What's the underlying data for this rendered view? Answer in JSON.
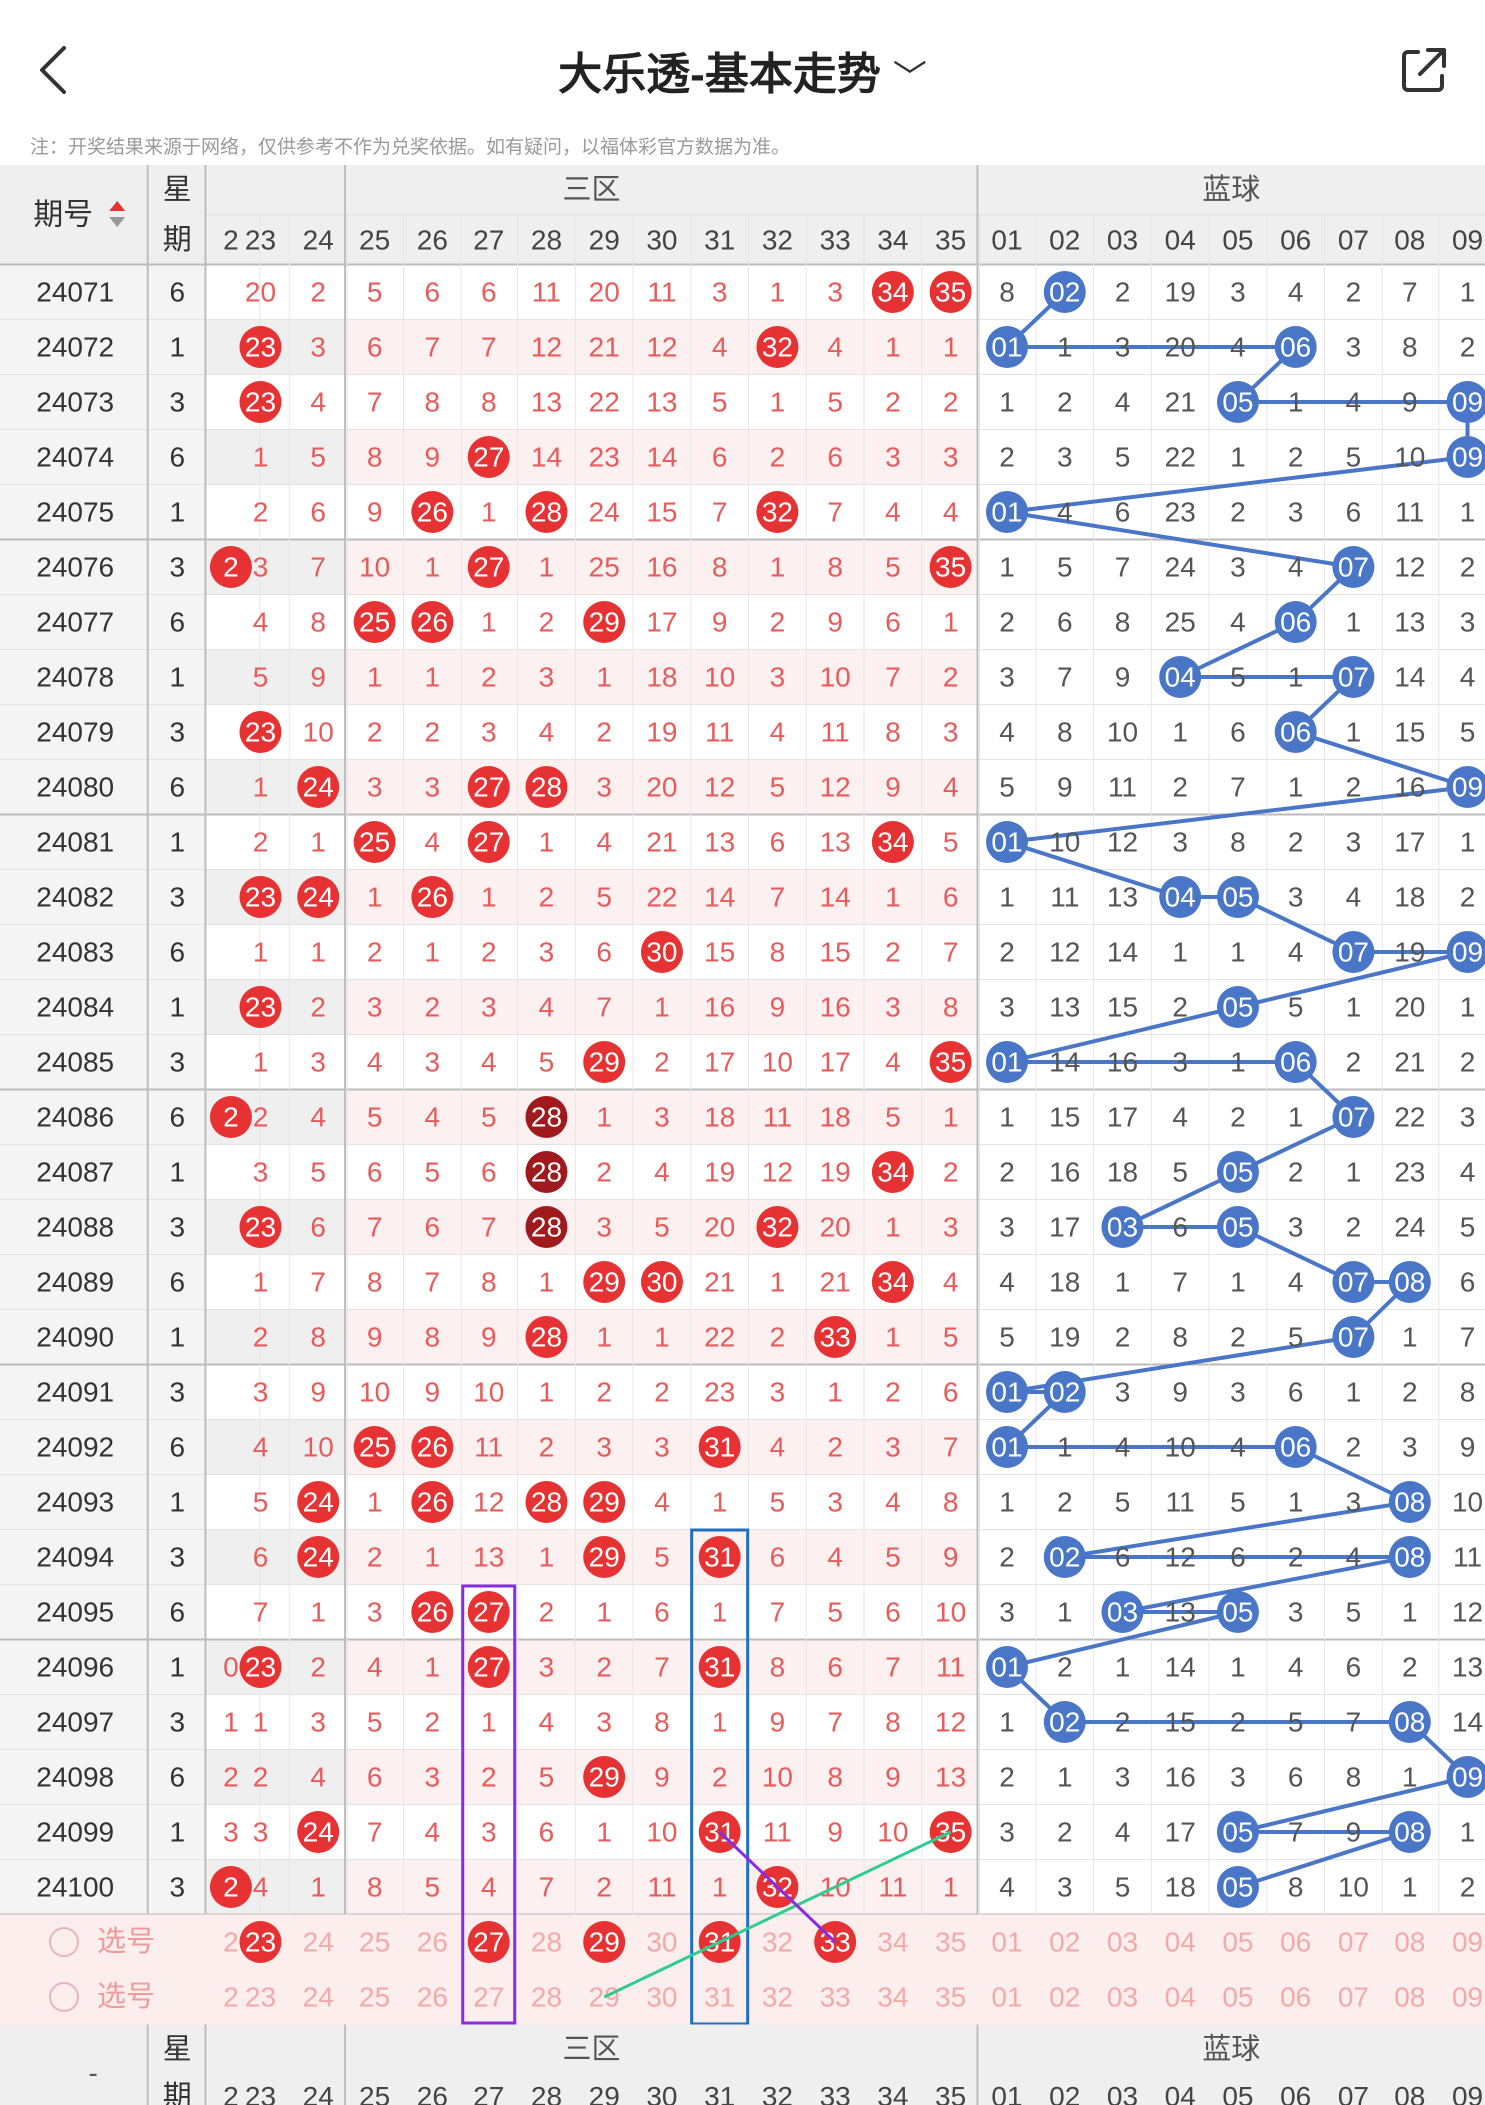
{
  "header": {
    "title": "大乐透-基本走势",
    "back_icon": "chevron-left-icon",
    "dropdown_icon": "chevron-down-icon",
    "share_icon": "share-icon"
  },
  "note": "注：开奖结果来源于网络，仅供参考不作为兑奖依据。如有疑问，以福体彩官方数据为准。",
  "table": {
    "col_issue": "期号",
    "col_week_1": "星",
    "col_week_2": "期",
    "zone_label": "三区",
    "blue_label": "蓝球",
    "front_cols": [
      "2",
      "23",
      "24",
      "25",
      "26",
      "27",
      "28",
      "29",
      "30",
      "31",
      "32",
      "33",
      "34",
      "35"
    ],
    "blue_cols": [
      "01",
      "02",
      "03",
      "04",
      "05",
      "06",
      "07",
      "08",
      "09"
    ],
    "select_label": "选号",
    "footer_issue": "-",
    "rows": [
      {
        "issue": "24071",
        "week": "6",
        "front": [
          "",
          "20",
          "2",
          "5",
          "6",
          "6",
          "11",
          "20",
          "11",
          "3",
          "1",
          "3",
          "34",
          "35"
        ],
        "blue": [
          "8",
          "02",
          "2",
          "19",
          "3",
          "4",
          "2",
          "7",
          "1"
        ],
        "hitsF": [
          12,
          13
        ],
        "hitsB": [
          1
        ]
      },
      {
        "issue": "24072",
        "week": "1",
        "front": [
          "",
          "23",
          "3",
          "6",
          "7",
          "7",
          "12",
          "21",
          "12",
          "4",
          "32",
          "4",
          "1",
          "1"
        ],
        "blue": [
          "01",
          "1",
          "3",
          "20",
          "4",
          "06",
          "3",
          "8",
          "2"
        ],
        "hitsF": [
          1,
          10
        ],
        "hitsB": [
          0,
          5
        ]
      },
      {
        "issue": "24073",
        "week": "3",
        "front": [
          "",
          "23",
          "4",
          "7",
          "8",
          "8",
          "13",
          "22",
          "13",
          "5",
          "1",
          "5",
          "2",
          "2"
        ],
        "blue": [
          "1",
          "2",
          "4",
          "21",
          "05",
          "1",
          "4",
          "9",
          "09"
        ],
        "hitsF": [
          1
        ],
        "hitsB": [
          4,
          8
        ]
      },
      {
        "issue": "24074",
        "week": "6",
        "front": [
          "",
          "1",
          "5",
          "8",
          "9",
          "27",
          "14",
          "23",
          "14",
          "6",
          "2",
          "6",
          "3",
          "3"
        ],
        "blue": [
          "2",
          "3",
          "5",
          "22",
          "1",
          "2",
          "5",
          "10",
          "09"
        ],
        "hitsF": [
          5
        ],
        "hitsB": [
          8
        ]
      },
      {
        "issue": "24075",
        "week": "1",
        "front": [
          "",
          "2",
          "6",
          "9",
          "26",
          "1",
          "28",
          "24",
          "15",
          "7",
          "32",
          "7",
          "4",
          "4"
        ],
        "blue": [
          "01",
          "4",
          "6",
          "23",
          "2",
          "3",
          "6",
          "11",
          "1"
        ],
        "hitsF": [
          4,
          6,
          10
        ],
        "hitsB": [
          0
        ]
      },
      {
        "issue": "24076",
        "week": "3",
        "front": [
          "2",
          "3",
          "7",
          "10",
          "1",
          "27",
          "1",
          "25",
          "16",
          "8",
          "1",
          "8",
          "5",
          "35"
        ],
        "blue": [
          "1",
          "5",
          "7",
          "24",
          "3",
          "4",
          "07",
          "12",
          "2"
        ],
        "hitsF": [
          0,
          5,
          13
        ],
        "hitsB": [
          6
        ]
      },
      {
        "issue": "24077",
        "week": "6",
        "front": [
          "",
          "4",
          "8",
          "25",
          "26",
          "1",
          "2",
          "29",
          "17",
          "9",
          "2",
          "9",
          "6",
          "1"
        ],
        "blue": [
          "2",
          "6",
          "8",
          "25",
          "4",
          "06",
          "1",
          "13",
          "3"
        ],
        "hitsF": [
          3,
          4,
          7
        ],
        "hitsB": [
          5
        ]
      },
      {
        "issue": "24078",
        "week": "1",
        "front": [
          "",
          "5",
          "9",
          "1",
          "1",
          "2",
          "3",
          "1",
          "18",
          "10",
          "3",
          "10",
          "7",
          "2"
        ],
        "blue": [
          "3",
          "7",
          "9",
          "04",
          "5",
          "1",
          "07",
          "14",
          "4"
        ],
        "hitsF": [],
        "hitsB": [
          3,
          6
        ]
      },
      {
        "issue": "24079",
        "week": "3",
        "front": [
          "",
          "23",
          "10",
          "2",
          "2",
          "3",
          "4",
          "2",
          "19",
          "11",
          "4",
          "11",
          "8",
          "3"
        ],
        "blue": [
          "4",
          "8",
          "10",
          "1",
          "6",
          "06",
          "1",
          "15",
          "5"
        ],
        "hitsF": [
          1
        ],
        "hitsB": [
          5
        ]
      },
      {
        "issue": "24080",
        "week": "6",
        "front": [
          "",
          "1",
          "24",
          "3",
          "3",
          "27",
          "28",
          "3",
          "20",
          "12",
          "5",
          "12",
          "9",
          "4"
        ],
        "blue": [
          "5",
          "9",
          "11",
          "2",
          "7",
          "1",
          "2",
          "16",
          "09"
        ],
        "hitsF": [
          2,
          5,
          6
        ],
        "hitsB": [
          8
        ]
      },
      {
        "issue": "24081",
        "week": "1",
        "front": [
          "",
          "2",
          "1",
          "25",
          "4",
          "27",
          "1",
          "4",
          "21",
          "13",
          "6",
          "13",
          "34",
          "5"
        ],
        "blue": [
          "01",
          "10",
          "12",
          "3",
          "8",
          "2",
          "3",
          "17",
          "1"
        ],
        "hitsF": [
          3,
          5,
          12
        ],
        "hitsB": [
          0
        ]
      },
      {
        "issue": "24082",
        "week": "3",
        "front": [
          "",
          "23",
          "24",
          "1",
          "26",
          "1",
          "2",
          "5",
          "22",
          "14",
          "7",
          "14",
          "1",
          "6"
        ],
        "blue": [
          "1",
          "11",
          "13",
          "04",
          "05",
          "3",
          "4",
          "18",
          "2"
        ],
        "hitsF": [
          1,
          2,
          4
        ],
        "hitsB": [
          3,
          4
        ]
      },
      {
        "issue": "24083",
        "week": "6",
        "front": [
          "",
          "1",
          "1",
          "2",
          "1",
          "2",
          "3",
          "6",
          "30",
          "15",
          "8",
          "15",
          "2",
          "7"
        ],
        "blue": [
          "2",
          "12",
          "14",
          "1",
          "1",
          "4",
          "07",
          "19",
          "09"
        ],
        "hitsF": [
          8
        ],
        "hitsB": [
          6,
          8
        ]
      },
      {
        "issue": "24084",
        "week": "1",
        "front": [
          "",
          "23",
          "2",
          "3",
          "2",
          "3",
          "4",
          "7",
          "1",
          "16",
          "9",
          "16",
          "3",
          "8"
        ],
        "blue": [
          "3",
          "13",
          "15",
          "2",
          "05",
          "5",
          "1",
          "20",
          "1"
        ],
        "hitsF": [
          1
        ],
        "hitsB": [
          4
        ]
      },
      {
        "issue": "24085",
        "week": "3",
        "front": [
          "",
          "1",
          "3",
          "4",
          "3",
          "4",
          "5",
          "29",
          "2",
          "17",
          "10",
          "17",
          "4",
          "35"
        ],
        "blue": [
          "01",
          "14",
          "16",
          "3",
          "1",
          "06",
          "2",
          "21",
          "2"
        ],
        "hitsF": [
          7,
          13
        ],
        "hitsB": [
          0,
          5
        ]
      },
      {
        "issue": "24086",
        "week": "6",
        "front": [
          "2",
          "2",
          "4",
          "5",
          "4",
          "5",
          "28",
          "1",
          "3",
          "18",
          "11",
          "18",
          "5",
          "1"
        ],
        "blue": [
          "1",
          "15",
          "17",
          "4",
          "2",
          "1",
          "07",
          "22",
          "3"
        ],
        "hitsF": [
          0,
          6
        ],
        "hitsB": [
          6
        ]
      },
      {
        "issue": "24087",
        "week": "1",
        "front": [
          "",
          "3",
          "5",
          "6",
          "5",
          "6",
          "28",
          "2",
          "4",
          "19",
          "12",
          "19",
          "34",
          "2"
        ],
        "blue": [
          "2",
          "16",
          "18",
          "5",
          "05",
          "2",
          "1",
          "23",
          "4"
        ],
        "hitsF": [
          6,
          12
        ],
        "hitsB": [
          4
        ]
      },
      {
        "issue": "24088",
        "week": "3",
        "front": [
          "",
          "23",
          "6",
          "7",
          "6",
          "7",
          "28",
          "3",
          "5",
          "20",
          "32",
          "20",
          "1",
          "3"
        ],
        "blue": [
          "3",
          "17",
          "03",
          "6",
          "05",
          "3",
          "2",
          "24",
          "5"
        ],
        "hitsF": [
          1,
          6,
          10
        ],
        "hitsB": [
          2,
          4
        ]
      },
      {
        "issue": "24089",
        "week": "6",
        "front": [
          "",
          "1",
          "7",
          "8",
          "7",
          "8",
          "1",
          "29",
          "30",
          "21",
          "1",
          "21",
          "34",
          "4"
        ],
        "blue": [
          "4",
          "18",
          "1",
          "7",
          "1",
          "4",
          "07",
          "08",
          "6"
        ],
        "hitsF": [
          7,
          8,
          12
        ],
        "hitsB": [
          6,
          7
        ]
      },
      {
        "issue": "24090",
        "week": "1",
        "front": [
          "",
          "2",
          "8",
          "9",
          "8",
          "9",
          "28",
          "1",
          "1",
          "22",
          "2",
          "33",
          "1",
          "5"
        ],
        "blue": [
          "5",
          "19",
          "2",
          "8",
          "2",
          "5",
          "07",
          "1",
          "7"
        ],
        "hitsF": [
          6,
          11
        ],
        "hitsB": [
          6
        ]
      },
      {
        "issue": "24091",
        "week": "3",
        "front": [
          "",
          "3",
          "9",
          "10",
          "9",
          "10",
          "1",
          "2",
          "2",
          "23",
          "3",
          "1",
          "2",
          "6"
        ],
        "blue": [
          "01",
          "02",
          "3",
          "9",
          "3",
          "6",
          "1",
          "2",
          "8"
        ],
        "hitsF": [],
        "hitsB": [
          0,
          1
        ]
      },
      {
        "issue": "24092",
        "week": "6",
        "front": [
          "",
          "4",
          "10",
          "25",
          "26",
          "11",
          "2",
          "3",
          "3",
          "31",
          "4",
          "2",
          "3",
          "7"
        ],
        "blue": [
          "01",
          "1",
          "4",
          "10",
          "4",
          "06",
          "2",
          "3",
          "9"
        ],
        "hitsF": [
          3,
          4,
          9
        ],
        "hitsB": [
          0,
          5
        ]
      },
      {
        "issue": "24093",
        "week": "1",
        "front": [
          "",
          "5",
          "24",
          "1",
          "26",
          "12",
          "28",
          "29",
          "4",
          "1",
          "5",
          "3",
          "4",
          "8"
        ],
        "blue": [
          "1",
          "2",
          "5",
          "11",
          "5",
          "1",
          "3",
          "08",
          "10"
        ],
        "hitsF": [
          2,
          4,
          6,
          7
        ],
        "hitsB": [
          7
        ]
      },
      {
        "issue": "24094",
        "week": "3",
        "front": [
          "",
          "6",
          "24",
          "2",
          "1",
          "13",
          "1",
          "29",
          "5",
          "31",
          "6",
          "4",
          "5",
          "9"
        ],
        "blue": [
          "2",
          "02",
          "6",
          "12",
          "6",
          "2",
          "4",
          "08",
          "11"
        ],
        "hitsF": [
          2,
          7,
          9
        ],
        "hitsB": [
          1,
          7
        ]
      },
      {
        "issue": "24095",
        "week": "6",
        "front": [
          "",
          "7",
          "1",
          "3",
          "26",
          "27",
          "2",
          "1",
          "6",
          "1",
          "7",
          "5",
          "6",
          "10"
        ],
        "blue": [
          "3",
          "1",
          "03",
          "13",
          "05",
          "3",
          "5",
          "1",
          "12"
        ],
        "hitsF": [
          4,
          5
        ],
        "hitsB": [
          2,
          4
        ]
      },
      {
        "issue": "24096",
        "week": "1",
        "front": [
          "0",
          "23",
          "2",
          "4",
          "1",
          "27",
          "3",
          "2",
          "7",
          "31",
          "8",
          "6",
          "7",
          "11"
        ],
        "blue": [
          "01",
          "2",
          "1",
          "14",
          "1",
          "4",
          "6",
          "2",
          "13"
        ],
        "hitsF": [
          1,
          5,
          9
        ],
        "hitsB": [
          0
        ]
      },
      {
        "issue": "24097",
        "week": "3",
        "front": [
          "1",
          "1",
          "3",
          "5",
          "2",
          "1",
          "4",
          "3",
          "8",
          "1",
          "9",
          "7",
          "8",
          "12"
        ],
        "blue": [
          "1",
          "02",
          "2",
          "15",
          "2",
          "5",
          "7",
          "08",
          "14"
        ],
        "hitsF": [],
        "hitsB": [
          1,
          7
        ]
      },
      {
        "issue": "24098",
        "week": "6",
        "front": [
          "2",
          "2",
          "4",
          "6",
          "3",
          "2",
          "5",
          "29",
          "9",
          "2",
          "10",
          "8",
          "9",
          "13"
        ],
        "blue": [
          "2",
          "1",
          "3",
          "16",
          "3",
          "6",
          "8",
          "1",
          "09"
        ],
        "hitsF": [
          7
        ],
        "hitsB": [
          8
        ]
      },
      {
        "issue": "24099",
        "week": "1",
        "front": [
          "3",
          "3",
          "24",
          "7",
          "4",
          "3",
          "6",
          "1",
          "10",
          "31",
          "11",
          "9",
          "10",
          "35"
        ],
        "blue": [
          "3",
          "2",
          "4",
          "17",
          "05",
          "7",
          "9",
          "08",
          "1"
        ],
        "hitsF": [
          2,
          9,
          13
        ],
        "hitsB": [
          4,
          7
        ]
      },
      {
        "issue": "24100",
        "week": "3",
        "front": [
          "2",
          "4",
          "1",
          "8",
          "5",
          "4",
          "7",
          "2",
          "11",
          "1",
          "32",
          "10",
          "11",
          "1"
        ],
        "blue": [
          "4",
          "3",
          "5",
          "18",
          "05",
          "8",
          "10",
          "1",
          "2"
        ],
        "hitsF": [
          0,
          10
        ],
        "hitsB": [
          4
        ]
      }
    ],
    "select_hits": [
      1,
      5,
      7,
      9,
      11
    ]
  },
  "colors": {
    "red": "#e63232",
    "dark_red": "#a0191c",
    "blue": "#4a76c8",
    "purple": "#8a2be2",
    "box_blue": "#1f6fc0",
    "green": "#2ecc8f",
    "text_red": "#e85b5b",
    "header_bg": "#efefef"
  }
}
